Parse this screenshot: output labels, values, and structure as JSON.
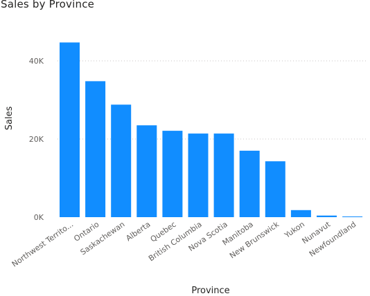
{
  "chart_data": {
    "type": "bar",
    "title": "Sales by Province",
    "xlabel": "Province",
    "ylabel": "Sales",
    "categories": [
      "Northwest Territo...",
      "Ontario",
      "Saskachewan",
      "Alberta",
      "Quebec",
      "British Columbia",
      "Nova Scotia",
      "Manitoba",
      "New Brunswick",
      "Yukon",
      "Nunavut",
      "Newfoundland"
    ],
    "values": [
      44700,
      34800,
      28800,
      23500,
      22100,
      21400,
      21400,
      17000,
      14300,
      1800,
      400,
      150
    ],
    "ylim": [
      0,
      50000
    ],
    "yticks": [
      0,
      20000,
      40000
    ],
    "ytick_labels": [
      "0K",
      "20K",
      "40K"
    ],
    "grid": true,
    "legend": "none",
    "bar_color": "#118dff",
    "grid_color": "#c8c6c4"
  }
}
